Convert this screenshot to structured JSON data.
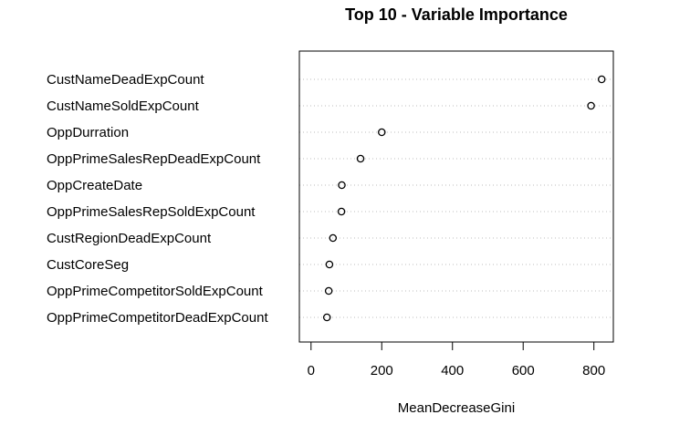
{
  "chart_data": {
    "type": "scatter",
    "title": "Top 10 - Variable Importance",
    "xlabel": "MeanDecreaseGini",
    "ylabel": "",
    "categories": [
      "CustNameDeadExpCount",
      "CustNameSoldExpCount",
      "OppDurration",
      "OppPrimeSalesRepDeadExpCount",
      "OppCreateDate",
      "OppPrimeSalesRepSoldExpCount",
      "CustRegionDeadExpCount",
      "CustCoreSeg",
      "OppPrimeCompetitorSoldExpCount",
      "OppPrimeCompetitorDeadExpCount"
    ],
    "values": [
      822,
      792,
      200,
      140,
      87,
      86,
      62,
      52,
      50,
      45
    ],
    "xlim": [
      -33,
      855
    ],
    "xticks": [
      0,
      200,
      400,
      600,
      800
    ],
    "grid": "horizontal dotted"
  }
}
